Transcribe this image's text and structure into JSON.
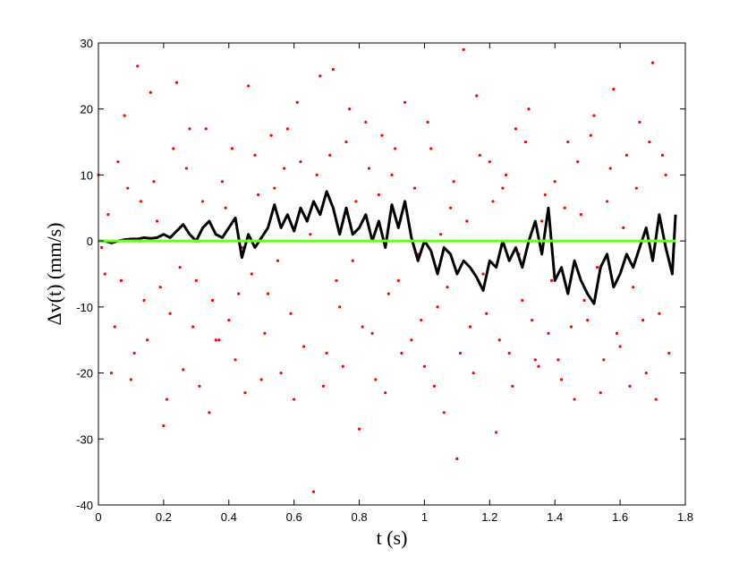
{
  "chart_data": {
    "type": "scatter",
    "xlabel": "t (s)",
    "ylabel": "Δv(t) (mm/s)",
    "xlim": [
      0,
      1.8
    ],
    "xticks": [
      0,
      0.2,
      0.4,
      0.6,
      0.8,
      1,
      1.2,
      1.4,
      1.6,
      1.8
    ],
    "ylim": [
      -40,
      30
    ],
    "yticks": [
      -40,
      -30,
      -20,
      -10,
      0,
      10,
      20,
      30
    ],
    "series": [
      {
        "type": "scatter",
        "color": "#ff0000",
        "x": [
          0,
          0.02,
          0.04,
          0.06,
          0.08,
          0.1,
          0.12,
          0.14,
          0.16,
          0.18,
          0.2,
          0.22,
          0.24,
          0.26,
          0.28,
          0.3,
          0.32,
          0.34,
          0.36,
          0.38,
          0.4,
          0.42,
          0.44,
          0.46,
          0.48,
          0.5,
          0.52,
          0.54,
          0.56,
          0.58,
          0.6,
          0.62,
          0.64,
          0.66,
          0.68,
          0.7,
          0.72,
          0.74,
          0.76,
          0.78,
          0.8,
          0.82,
          0.84,
          0.86,
          0.88,
          0.9,
          0.92,
          0.94,
          0.96,
          0.98,
          1.0,
          1.02,
          1.04,
          1.06,
          1.08,
          1.1,
          1.12,
          1.14,
          1.16,
          1.18,
          1.2,
          1.22,
          1.24,
          1.26,
          1.28,
          1.3,
          1.32,
          1.34,
          1.36,
          1.38,
          1.4,
          1.42,
          1.44,
          1.46,
          1.48,
          1.5,
          1.52,
          1.54,
          1.56,
          1.58,
          1.6,
          1.62,
          1.64,
          1.66,
          1.68,
          1.7,
          1.72,
          1.74,
          1.76
        ],
        "values": [
          10,
          -5,
          -20,
          12,
          19,
          -21,
          26.5,
          -9,
          22.5,
          3,
          -28,
          -11,
          24,
          -19.5,
          17,
          -6,
          6,
          -26,
          -15,
          9,
          -12,
          -18,
          -1,
          23.5,
          13,
          -21,
          -8,
          8,
          -20,
          17,
          -24,
          12,
          3,
          -38,
          25,
          -17,
          26,
          -10,
          15,
          -3,
          -28.5,
          18,
          -14,
          7,
          -23,
          10,
          -6,
          21,
          -15,
          -2,
          -19,
          14,
          -10,
          -26,
          5,
          -33,
          29,
          -13,
          22,
          -5,
          12,
          -29,
          8,
          -17,
          17,
          -9,
          20,
          -18,
          3,
          -14,
          9,
          -21,
          15,
          -24,
          4,
          -12,
          19,
          -23,
          6,
          23,
          -16,
          13,
          -7,
          18,
          -20,
          27,
          -11,
          10,
          -4
        ]
      },
      {
        "type": "scatter",
        "color": "#ff0000",
        "x": [
          0.01,
          0.03,
          0.05,
          0.07,
          0.09,
          0.11,
          0.13,
          0.15,
          0.17,
          0.19,
          0.21,
          0.23,
          0.25,
          0.27,
          0.29,
          0.31,
          0.33,
          0.35,
          0.37,
          0.39,
          0.41,
          0.43,
          0.45,
          0.47,
          0.49,
          0.51,
          0.53,
          0.55,
          0.57,
          0.59,
          0.61,
          0.63,
          0.65,
          0.67,
          0.69,
          0.71,
          0.73,
          0.75,
          0.77,
          0.79,
          0.81,
          0.83,
          0.85,
          0.87,
          0.89,
          0.91,
          0.93,
          0.95,
          0.97,
          0.99,
          1.01,
          1.03,
          1.05,
          1.07,
          1.09,
          1.11,
          1.13,
          1.15,
          1.17,
          1.19,
          1.21,
          1.23,
          1.25,
          1.27,
          1.29,
          1.31,
          1.33,
          1.35,
          1.37,
          1.39,
          1.41,
          1.43,
          1.45,
          1.47,
          1.49,
          1.51,
          1.53,
          1.55,
          1.57,
          1.59,
          1.61,
          1.63,
          1.65,
          1.67,
          1.69,
          1.71,
          1.73,
          1.75
        ],
        "values": [
          -1,
          4,
          -13,
          -6,
          8,
          -17,
          6,
          -15,
          9,
          -7,
          -24,
          14,
          -4,
          11,
          -13,
          -22,
          17,
          -9,
          -15,
          5,
          14,
          -8,
          -23,
          -5,
          7,
          -14,
          16,
          -3,
          11,
          -11,
          21,
          -16,
          1,
          10,
          -22,
          13,
          -6,
          -19,
          20,
          6,
          -13,
          11,
          -21,
          16,
          -8,
          14,
          -17,
          0,
          8,
          -12,
          18,
          -22,
          1,
          -7,
          9,
          -17,
          3,
          -20,
          13,
          -11,
          6,
          -15,
          10,
          -22,
          -2,
          15,
          -12,
          -19,
          7,
          -6,
          -18,
          5,
          -13,
          12,
          -9,
          16,
          -4,
          -18,
          11,
          -14,
          2,
          -22,
          8,
          -12,
          15,
          -24,
          13,
          -17
        ]
      },
      {
        "type": "line",
        "color": "#000000",
        "x": [
          0,
          0.02,
          0.04,
          0.06,
          0.08,
          0.1,
          0.12,
          0.14,
          0.16,
          0.18,
          0.2,
          0.22,
          0.24,
          0.26,
          0.28,
          0.3,
          0.32,
          0.34,
          0.36,
          0.38,
          0.4,
          0.42,
          0.44,
          0.46,
          0.48,
          0.5,
          0.52,
          0.54,
          0.56,
          0.58,
          0.6,
          0.62,
          0.64,
          0.66,
          0.68,
          0.7,
          0.72,
          0.74,
          0.76,
          0.78,
          0.8,
          0.82,
          0.84,
          0.86,
          0.88,
          0.9,
          0.92,
          0.94,
          0.96,
          0.98,
          1.0,
          1.02,
          1.04,
          1.06,
          1.08,
          1.1,
          1.12,
          1.14,
          1.16,
          1.18,
          1.2,
          1.22,
          1.24,
          1.26,
          1.28,
          1.3,
          1.32,
          1.34,
          1.36,
          1.38,
          1.4,
          1.42,
          1.44,
          1.46,
          1.48,
          1.5,
          1.52,
          1.54,
          1.56,
          1.58,
          1.6,
          1.62,
          1.64,
          1.66,
          1.68,
          1.7,
          1.72,
          1.74,
          1.76,
          1.77
        ],
        "values": [
          0,
          0,
          -0.3,
          0,
          0.2,
          0.3,
          0.3,
          0.5,
          0.4,
          0.5,
          1,
          0.5,
          1.5,
          2.5,
          1,
          0,
          2,
          3,
          1,
          0.5,
          2,
          3.5,
          -2.5,
          1,
          -1,
          0.5,
          2,
          5.5,
          2,
          4,
          1.5,
          5,
          3,
          6,
          4,
          7.5,
          5,
          1,
          5,
          1,
          2,
          4,
          0,
          3,
          -1,
          5.5,
          2,
          6,
          0.5,
          -3,
          0,
          -1.5,
          -5,
          -1,
          -2,
          -5,
          -3,
          -4,
          -5.5,
          -7.5,
          -3,
          -4,
          0,
          -3,
          -1,
          -4,
          0,
          3,
          -2,
          5,
          -6,
          -4,
          -8,
          -3,
          -6,
          -8,
          -9.5,
          -4,
          -2,
          -7,
          -5,
          -2,
          -4,
          -1,
          2,
          -3,
          4,
          -1,
          -5,
          4
        ]
      },
      {
        "type": "line",
        "color": "#66ff22",
        "x": [
          0,
          1.77
        ],
        "values": [
          0,
          0
        ]
      }
    ]
  }
}
